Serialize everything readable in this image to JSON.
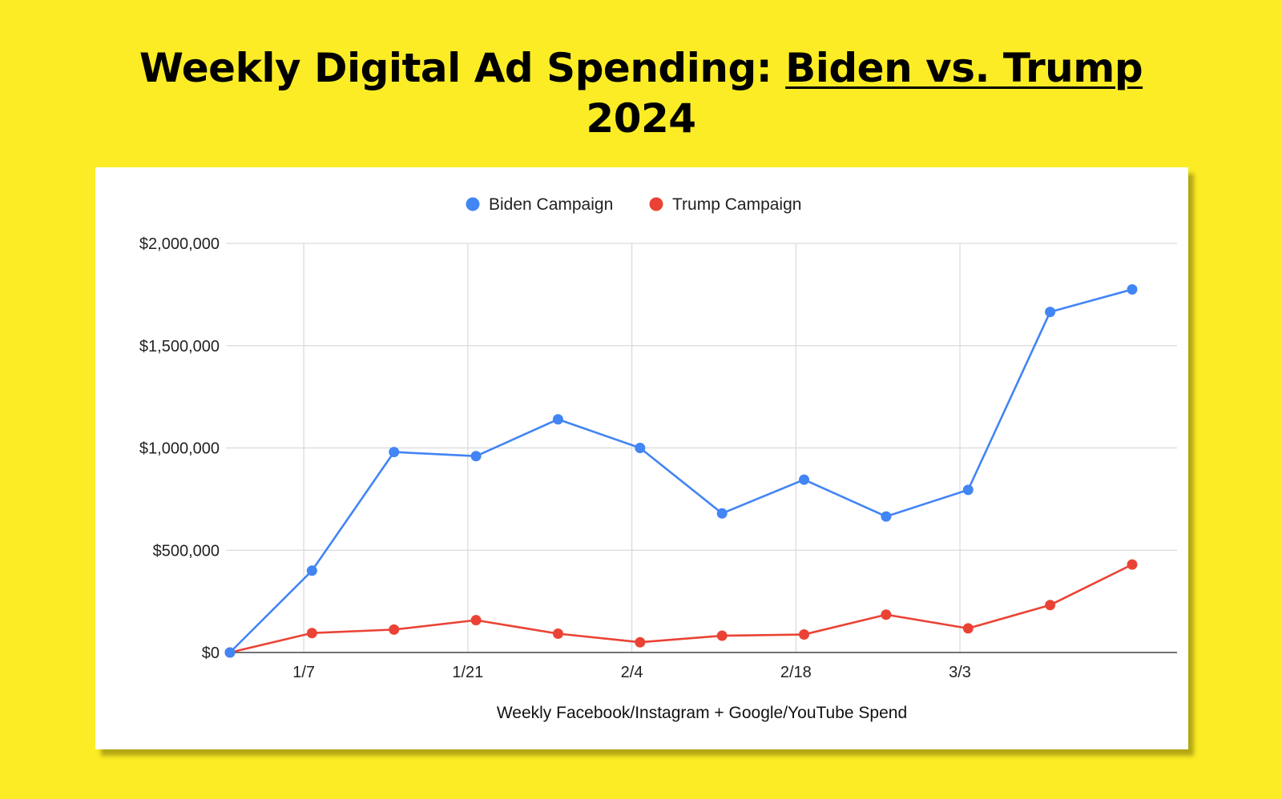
{
  "title": {
    "prefix": "Weekly Digital Ad Spending: ",
    "highlight": "Biden vs. Trump",
    "suffix": "2024"
  },
  "chart_data": {
    "type": "line",
    "title": "Weekly Digital Ad Spending: Biden vs. Trump 2024",
    "xlabel": "Weekly Facebook/Instagram + Google/YouTube Spend",
    "ylabel": "",
    "x_tick_labels": [
      "1/7",
      "1/21",
      "2/4",
      "2/18",
      "3/3"
    ],
    "ylim": [
      0,
      2000000
    ],
    "y_tick_labels": [
      "$0",
      "$500,000",
      "$1,000,000",
      "$1,500,000",
      "$2,000,000"
    ],
    "y_ticks": [
      0,
      500000,
      1000000,
      1500000,
      2000000
    ],
    "grid": true,
    "legend_position": "top",
    "series": [
      {
        "name": "Biden Campaign",
        "color": "#4285f4",
        "values": [
          0,
          400000,
          980000,
          960000,
          1140000,
          1000000,
          680000,
          845000,
          665000,
          795000,
          1665000,
          1775000
        ]
      },
      {
        "name": "Trump Campaign",
        "color": "#ea4335",
        "values": [
          0,
          95000,
          112000,
          158000,
          92000,
          50000,
          82000,
          88000,
          185000,
          118000,
          232000,
          430000
        ]
      }
    ]
  }
}
